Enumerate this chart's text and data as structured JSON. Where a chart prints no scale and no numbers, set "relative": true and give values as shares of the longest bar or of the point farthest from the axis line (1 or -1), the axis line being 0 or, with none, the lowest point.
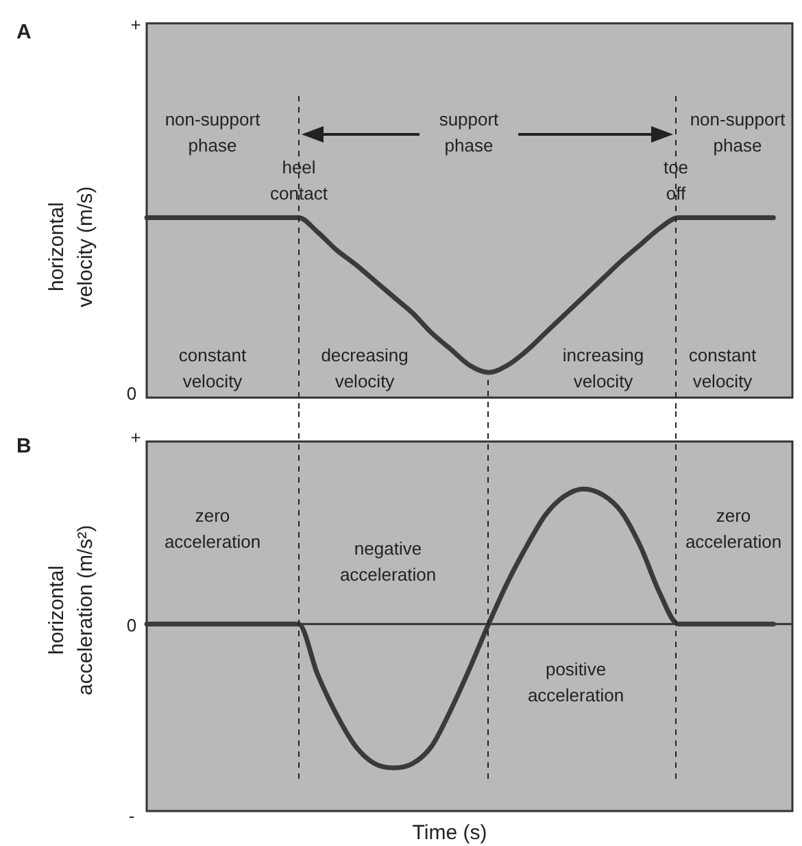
{
  "chart_data": [
    {
      "type": "line",
      "title": "A",
      "ylabel": "horizontal velocity (m/s)",
      "relative": true,
      "categories": [
        null,
        null,
        null,
        null,
        null,
        null,
        null,
        null,
        null,
        null,
        null,
        null,
        null,
        null,
        null,
        null,
        null,
        null,
        null,
        null,
        null,
        null,
        null,
        null,
        null,
        null,
        null,
        null,
        null,
        null,
        null,
        null,
        null,
        null,
        null
      ],
      "series": [
        {
          "color": "#3a3a3a",
          "values": [
            1,
            1,
            1,
            1,
            1,
            1,
            1,
            1,
            1,
            0.92,
            0.82,
            0.74,
            0.65,
            0.56,
            0.47,
            0.36,
            0.27,
            0.18,
            0.14,
            0.18,
            0.26,
            0.36,
            0.46,
            0.56,
            0.66,
            0.76,
            0.85,
            0.94,
            1,
            1,
            1,
            1,
            1,
            1,
            null
          ]
        }
      ],
      "annotations": [
        "+",
        "0",
        "non-support phase",
        "support phase",
        "non-support phase",
        "constant velocity",
        "decreasing velocity",
        "increasing velocity",
        "constant velocity",
        "heel contact",
        "toe off"
      ]
    },
    {
      "type": "line",
      "title": "B",
      "ylabel": "horizontal acceleration (m/s²)",
      "xlabel": "Time (s)",
      "relative": true,
      "grid": true,
      "categories": [
        null,
        null,
        null,
        null,
        null,
        null,
        null,
        null,
        null,
        null,
        null,
        null,
        null,
        null,
        null,
        null,
        null,
        null,
        null,
        null,
        null,
        null,
        null,
        null,
        null,
        null,
        null,
        null,
        null,
        null,
        null,
        null,
        null,
        null,
        null
      ],
      "series": [
        {
          "color": "#3a3a3a",
          "values": [
            0,
            0,
            0,
            0,
            0,
            0,
            0,
            0,
            0,
            -0.35,
            -0.63,
            -0.85,
            -0.97,
            -1,
            -0.97,
            -0.85,
            -0.6,
            -0.31,
            0,
            0.29,
            0.54,
            0.76,
            0.89,
            0.94,
            0.9,
            0.78,
            0.54,
            0.22,
            0,
            0,
            0,
            0,
            0,
            0,
            null
          ]
        }
      ],
      "annotations": [
        "+",
        "0",
        "-",
        "zero acceleration",
        "negative acceleration",
        "positive acceleration",
        "zero acceleration"
      ]
    }
  ]
}
